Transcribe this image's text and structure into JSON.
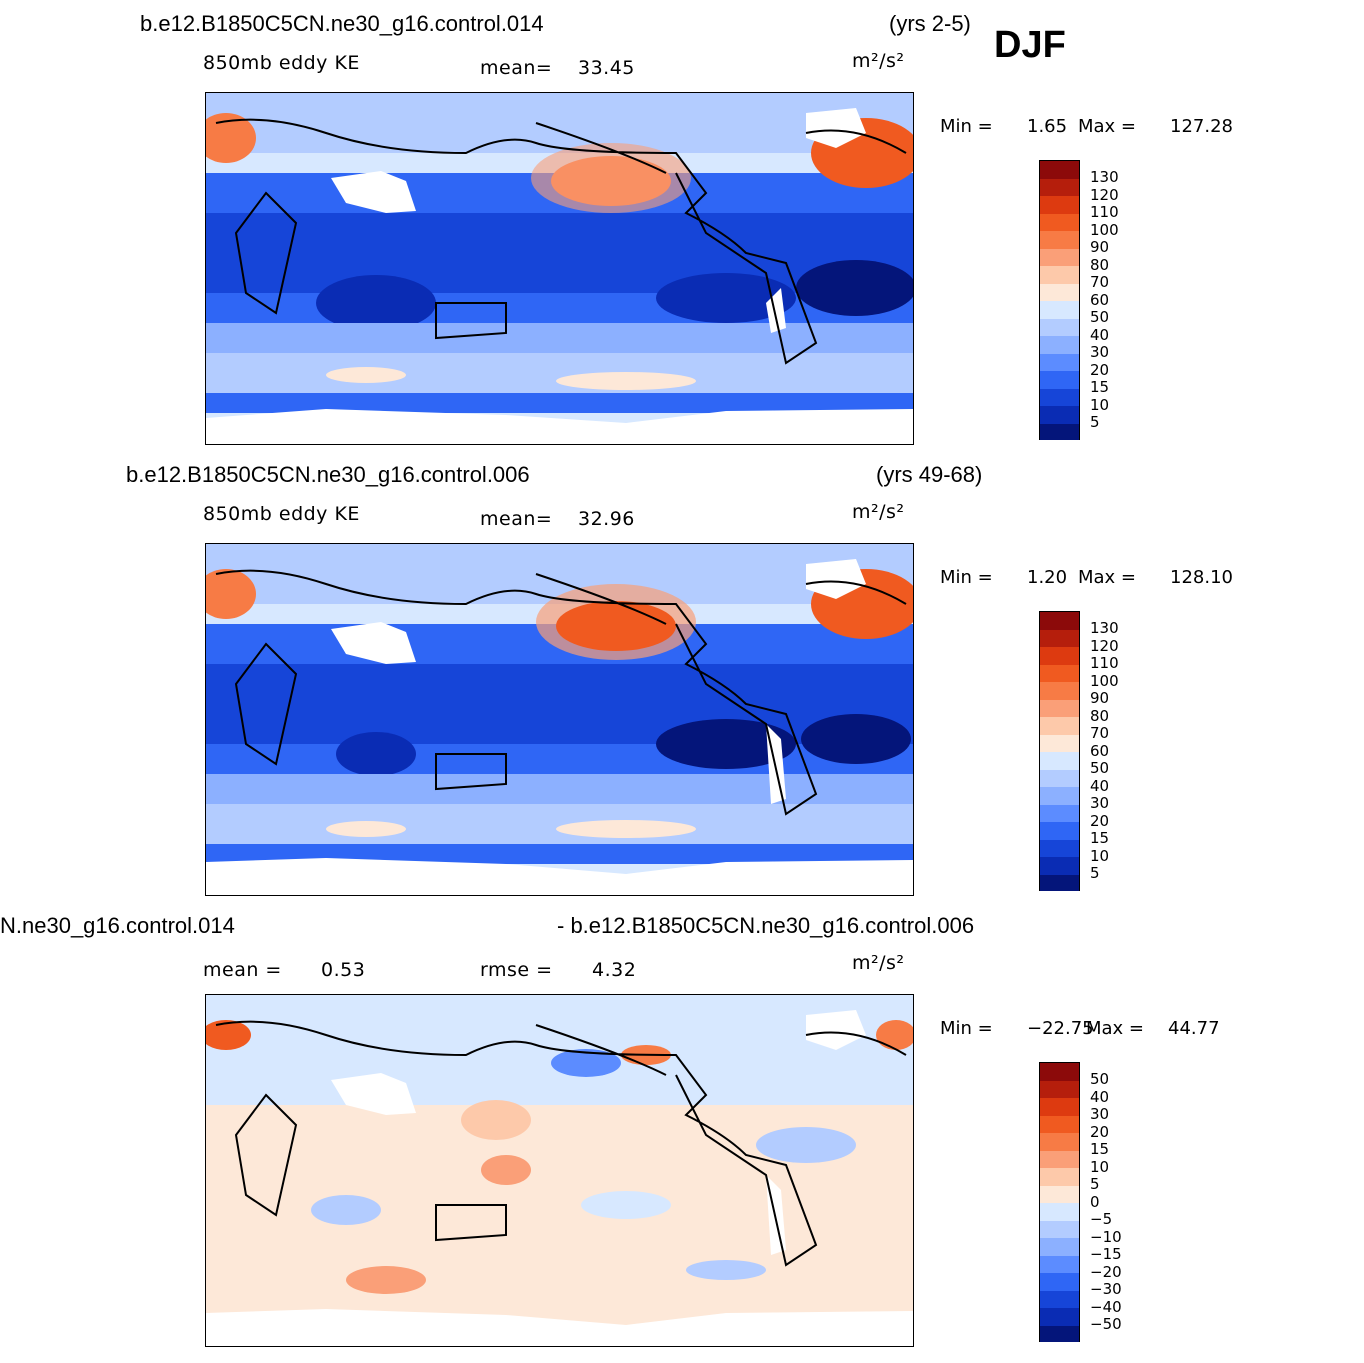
{
  "season": "DJF",
  "panels": [
    {
      "case": "b.e12.B1850C5CN.ne30_g16.control.014",
      "years": "(yrs 2-5)",
      "variable": "850mb eddy KE",
      "stat_label": "mean=",
      "stat_value": "33.45",
      "units": "m²/s²",
      "min_label": "Min =",
      "min_value": "1.65",
      "max_label": "Max =",
      "max_value": "127.28"
    },
    {
      "case": "b.e12.B1850C5CN.ne30_g16.control.006",
      "years": "(yrs 49-68)",
      "variable": "850mb eddy KE",
      "stat_label": "mean=",
      "stat_value": "32.96",
      "units": "m²/s²",
      "min_label": "Min =",
      "min_value": "1.20",
      "max_label": "Max =",
      "max_value": "128.10"
    },
    {
      "case_left": "N.ne30_g16.control.014",
      "case_right": "- b.e12.B1850C5CN.ne30_g16.control.006",
      "mean_label": "mean =",
      "mean_value": "0.53",
      "rmse_label": "rmse =",
      "rmse_value": "4.32",
      "units": "m²/s²",
      "min_label": "Min =",
      "min_value": "−22.75",
      "max_label": "Max =",
      "max_value": "44.77"
    }
  ],
  "colorbar_abs": {
    "labels": [
      "130",
      "120",
      "110",
      "100",
      "90",
      "80",
      "70",
      "60",
      "50",
      "40",
      "30",
      "20",
      "15",
      "10",
      "5"
    ],
    "colors": [
      "#8c0a0a",
      "#b51e0c",
      "#dd3a10",
      "#f05a20",
      "#f77b45",
      "#fa9f78",
      "#fdc9aa",
      "#fde8d8",
      "#d7e8ff",
      "#b3ccff",
      "#8cb0ff",
      "#5c8cff",
      "#2f66f5",
      "#1645d8",
      "#0a2cb4",
      "#04157a"
    ]
  },
  "colorbar_diff": {
    "labels": [
      "50",
      "40",
      "30",
      "20",
      "15",
      "10",
      "5",
      "0",
      "−5",
      "−10",
      "−15",
      "−20",
      "−30",
      "−40",
      "−50"
    ],
    "colors": [
      "#8c0a0a",
      "#b51e0c",
      "#dd3a10",
      "#f05a20",
      "#f77b45",
      "#fa9f78",
      "#fdc9aa",
      "#fde8d8",
      "#d7e8ff",
      "#b3ccff",
      "#8cb0ff",
      "#5c8cff",
      "#2f66f5",
      "#1645d8",
      "#0a2cb4",
      "#04157a"
    ]
  }
}
